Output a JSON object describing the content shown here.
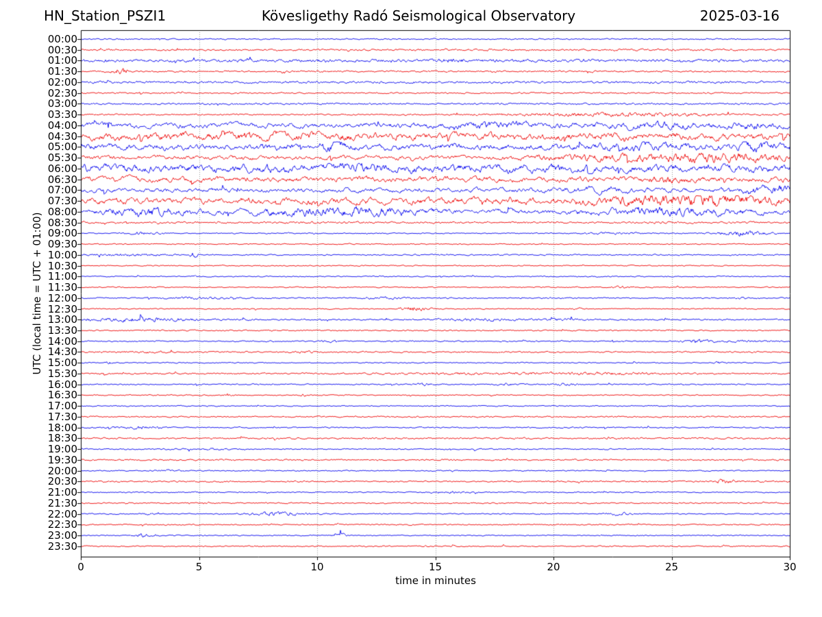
{
  "header": {
    "station": "HN_Station_PSZI1",
    "observatory": "Kövesligethy Radó Seismological Observatory",
    "date": "2025-03-16"
  },
  "chart_data": {
    "type": "line",
    "variant": "helicorder-day-plot",
    "title": "Kövesligethy Radó Seismological Observatory",
    "station": "HN_Station_PSZI1",
    "date": "2025-03-16",
    "xlabel": "time in minutes",
    "ylabel": "UTC (local time = UTC + 01:00)",
    "xlim": [
      0,
      30
    ],
    "x_ticks": [
      0,
      5,
      10,
      15,
      20,
      25,
      30
    ],
    "grid_vertical_dotted_minutes": [
      5,
      10,
      15,
      20,
      25
    ],
    "minutes_per_row": 30,
    "legend": "none",
    "colors": {
      "even_trace": "#0000ee",
      "odd_trace": "#ee0000",
      "grid": "#999999",
      "frame": "#000000",
      "background": "#ffffff"
    },
    "amplitude_note": "base = relative background amplitude of trace; events = [center_minute, half_width_minutes, extra_amplitude] envelopes of visible bursts",
    "rows": [
      {
        "time": "00:00",
        "color": "blue",
        "base": 0.7,
        "events": []
      },
      {
        "time": "00:30",
        "color": "red",
        "base": 1.0,
        "events": []
      },
      {
        "time": "01:00",
        "color": "blue",
        "base": 1.5,
        "events": [
          [
            15.5,
            0.8,
            0.8
          ]
        ]
      },
      {
        "time": "01:30",
        "color": "red",
        "base": 0.9,
        "events": [
          [
            1.7,
            0.3,
            3.0
          ]
        ]
      },
      {
        "time": "02:00",
        "color": "blue",
        "base": 1.2,
        "events": []
      },
      {
        "time": "02:30",
        "color": "red",
        "base": 0.8,
        "events": []
      },
      {
        "time": "03:00",
        "color": "blue",
        "base": 1.0,
        "events": []
      },
      {
        "time": "03:30",
        "color": "red",
        "base": 0.8,
        "events": [
          [
            22.5,
            5.0,
            1.3
          ]
        ]
      },
      {
        "time": "04:00",
        "color": "blue",
        "base": 2.2,
        "events": [
          [
            17.5,
            2.0,
            1.2
          ],
          [
            24.5,
            2.0,
            1.2
          ],
          [
            28.5,
            1.0,
            1.0
          ]
        ]
      },
      {
        "time": "04:30",
        "color": "red",
        "base": 2.8,
        "events": [
          [
            7.0,
            4.0,
            1.0
          ]
        ]
      },
      {
        "time": "05:00",
        "color": "blue",
        "base": 2.6,
        "events": [
          [
            10.8,
            0.5,
            2.5
          ],
          [
            24.0,
            1.5,
            1.5
          ],
          [
            28.6,
            0.7,
            2.5
          ]
        ]
      },
      {
        "time": "05:30",
        "color": "red",
        "base": 1.8,
        "events": [
          [
            24.0,
            4.0,
            2.2
          ],
          [
            28.0,
            2.0,
            2.0
          ]
        ]
      },
      {
        "time": "06:00",
        "color": "blue",
        "base": 3.2,
        "events": [
          [
            12.0,
            3.0,
            0.8
          ]
        ]
      },
      {
        "time": "06:30",
        "color": "red",
        "base": 2.3,
        "events": [
          [
            24.5,
            1.0,
            1.5
          ]
        ]
      },
      {
        "time": "07:00",
        "color": "blue",
        "base": 1.9,
        "events": [
          [
            22.0,
            1.0,
            1.2
          ],
          [
            29.0,
            1.2,
            2.5
          ]
        ]
      },
      {
        "time": "07:30",
        "color": "red",
        "base": 2.6,
        "events": [
          [
            26.0,
            3.5,
            3.2
          ]
        ]
      },
      {
        "time": "08:00",
        "color": "blue",
        "base": 2.0,
        "events": [
          [
            3.0,
            1.5,
            2.8
          ],
          [
            11.0,
            3.0,
            2.6
          ],
          [
            25.0,
            3.0,
            2.2
          ]
        ]
      },
      {
        "time": "08:30",
        "color": "red",
        "base": 1.1,
        "events": []
      },
      {
        "time": "09:00",
        "color": "blue",
        "base": 0.6,
        "events": [
          [
            2.5,
            0.8,
            1.0
          ],
          [
            22.5,
            1.5,
            0.8
          ],
          [
            28.0,
            1.0,
            2.2
          ]
        ]
      },
      {
        "time": "09:30",
        "color": "red",
        "base": 0.6,
        "events": []
      },
      {
        "time": "10:00",
        "color": "blue",
        "base": 0.7,
        "events": [
          [
            2.0,
            2.0,
            0.8
          ],
          [
            4.8,
            0.15,
            3.0
          ]
        ]
      },
      {
        "time": "10:30",
        "color": "red",
        "base": 0.6,
        "events": []
      },
      {
        "time": "11:00",
        "color": "blue",
        "base": 0.6,
        "events": []
      },
      {
        "time": "11:30",
        "color": "red",
        "base": 0.6,
        "events": [
          [
            23.0,
            0.5,
            0.8
          ]
        ]
      },
      {
        "time": "12:00",
        "color": "blue",
        "base": 0.7,
        "events": [
          [
            5.0,
            1.5,
            0.8
          ],
          [
            13.0,
            0.8,
            0.8
          ],
          [
            28.0,
            0.5,
            0.6
          ]
        ]
      },
      {
        "time": "12:30",
        "color": "red",
        "base": 0.6,
        "events": [
          [
            14.2,
            0.6,
            2.2
          ],
          [
            21.0,
            0.4,
            0.7
          ]
        ]
      },
      {
        "time": "13:00",
        "color": "blue",
        "base": 0.8,
        "events": [
          [
            2.5,
            2.5,
            1.5
          ],
          [
            3.2,
            0.1,
            2.5
          ],
          [
            17.0,
            2.0,
            0.8
          ],
          [
            20.5,
            1.0,
            0.8
          ]
        ]
      },
      {
        "time": "13:30",
        "color": "red",
        "base": 0.7,
        "events": []
      },
      {
        "time": "14:00",
        "color": "blue",
        "base": 0.7,
        "events": [
          [
            10.5,
            0.5,
            0.8
          ],
          [
            26.0,
            0.6,
            1.5
          ],
          [
            28.0,
            1.5,
            0.6
          ]
        ]
      },
      {
        "time": "14:30",
        "color": "red",
        "base": 0.8,
        "events": [
          [
            2.7,
            1.0,
            0.8
          ],
          [
            9.5,
            0.5,
            0.7
          ]
        ]
      },
      {
        "time": "15:00",
        "color": "blue",
        "base": 0.6,
        "events": [
          [
            1.2,
            0.15,
            1.5
          ],
          [
            27.0,
            0.2,
            1.0
          ]
        ]
      },
      {
        "time": "15:30",
        "color": "red",
        "base": 0.8,
        "events": [
          [
            16.0,
            4.0,
            0.6
          ],
          [
            22.0,
            3.0,
            0.9
          ]
        ]
      },
      {
        "time": "16:00",
        "color": "blue",
        "base": 0.7,
        "events": [
          [
            14.5,
            0.4,
            1.0
          ],
          [
            18.0,
            0.5,
            1.0
          ],
          [
            20.5,
            0.5,
            0.8
          ]
        ]
      },
      {
        "time": "16:30",
        "color": "red",
        "base": 0.6,
        "events": [
          [
            6.2,
            0.15,
            1.5
          ],
          [
            9.4,
            0.15,
            1.0
          ]
        ]
      },
      {
        "time": "17:00",
        "color": "blue",
        "base": 0.6,
        "events": []
      },
      {
        "time": "17:30",
        "color": "red",
        "base": 0.8,
        "events": []
      },
      {
        "time": "18:00",
        "color": "blue",
        "base": 0.7,
        "events": [
          [
            2.5,
            1.0,
            1.2
          ]
        ]
      },
      {
        "time": "18:30",
        "color": "red",
        "base": 0.9,
        "events": []
      },
      {
        "time": "19:00",
        "color": "blue",
        "base": 0.7,
        "events": [
          [
            5.5,
            0.8,
            0.5
          ]
        ]
      },
      {
        "time": "19:30",
        "color": "red",
        "base": 0.8,
        "events": []
      },
      {
        "time": "20:00",
        "color": "blue",
        "base": 0.6,
        "events": [
          [
            3.8,
            0.6,
            0.8
          ]
        ]
      },
      {
        "time": "20:30",
        "color": "red",
        "base": 0.8,
        "events": [
          [
            27.3,
            0.5,
            1.8
          ]
        ]
      },
      {
        "time": "21:00",
        "color": "blue",
        "base": 0.6,
        "events": [
          [
            15.6,
            0.8,
            0.7
          ]
        ]
      },
      {
        "time": "21:30",
        "color": "red",
        "base": 0.7,
        "events": []
      },
      {
        "time": "22:00",
        "color": "blue",
        "base": 0.6,
        "events": [
          [
            2.9,
            0.4,
            0.8
          ],
          [
            8.3,
            1.2,
            1.8
          ],
          [
            22.8,
            0.4,
            1.5
          ]
        ]
      },
      {
        "time": "22:30",
        "color": "red",
        "base": 0.7,
        "events": []
      },
      {
        "time": "23:00",
        "color": "blue",
        "base": 0.6,
        "events": [
          [
            2.6,
            0.4,
            1.5
          ],
          [
            10.9,
            0.3,
            2.5
          ]
        ]
      },
      {
        "time": "23:30",
        "color": "red",
        "base": 0.7,
        "events": []
      }
    ]
  }
}
